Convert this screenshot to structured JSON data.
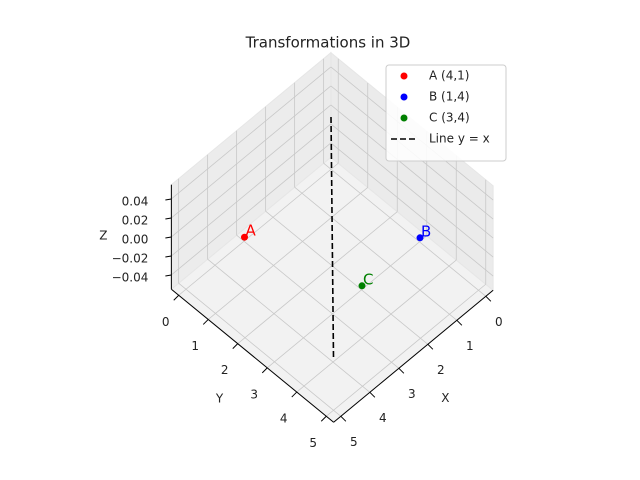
{
  "chart_data": {
    "type": "scatter3d",
    "title": "Transformations in 3D",
    "xlabel": "X",
    "ylabel": "Y",
    "zlabel": "Z",
    "xlim": [
      -0.25,
      5.25
    ],
    "ylim": [
      -0.25,
      5.25
    ],
    "zlim": [
      -0.055,
      0.055
    ],
    "xticks": [
      0,
      1,
      2,
      3,
      4,
      5
    ],
    "yticks": [
      0,
      1,
      2,
      3,
      4,
      5
    ],
    "zticks": [
      {
        "value": -0.04,
        "label": "−0.04"
      },
      {
        "value": -0.02,
        "label": "−0.02"
      },
      {
        "value": 0,
        "label": "0.00"
      },
      {
        "value": 0.02,
        "label": "0.02"
      },
      {
        "value": 0.04,
        "label": "0.04"
      }
    ],
    "grid": true,
    "legend": "upper right",
    "series": [
      {
        "name": "A (4,1)",
        "kind": "point",
        "color": "#ff0000",
        "x": [
          4
        ],
        "y": [
          1
        ],
        "z": [
          0
        ],
        "text": "A"
      },
      {
        "name": "B (1,4)",
        "kind": "point",
        "color": "#0000ff",
        "x": [
          1
        ],
        "y": [
          4
        ],
        "z": [
          0
        ],
        "text": "B"
      },
      {
        "name": "C (3,4)",
        "kind": "point",
        "color": "#008000",
        "x": [
          3
        ],
        "y": [
          4
        ],
        "z": [
          0
        ],
        "text": "C"
      },
      {
        "name": "Line y = x",
        "kind": "line",
        "color": "#000000",
        "dashed": true,
        "x": [
          0,
          5
        ],
        "y": [
          0,
          5
        ],
        "z": [
          0,
          0
        ]
      }
    ]
  }
}
